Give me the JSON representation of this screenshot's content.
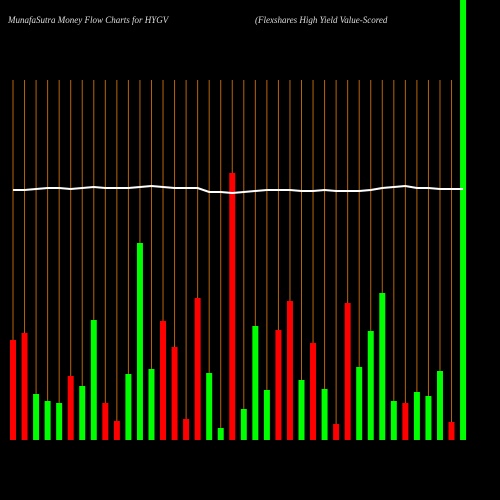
{
  "chart_data": {
    "type": "bar",
    "title": "MunafaSutra  Money Flow  Charts for HYGV",
    "subtitle": "(Flexshares High Yield Value-Scored",
    "values": [
      100,
      107,
      46,
      39,
      37,
      64,
      54,
      120,
      37,
      19,
      66,
      197,
      71,
      119,
      93,
      21,
      142,
      67,
      12,
      267,
      31,
      114,
      50,
      110,
      139,
      60,
      97,
      51,
      16,
      137,
      73,
      109,
      147,
      39,
      37,
      48,
      44,
      69,
      18,
      440
    ],
    "colors": [
      "#ff0000",
      "#ff0000",
      "#00ff00",
      "#00ff00",
      "#00ff00",
      "#ff0000",
      "#00ff00",
      "#00ff00",
      "#ff0000",
      "#ff0000",
      "#00ff00",
      "#00ff00",
      "#00ff00",
      "#ff0000",
      "#ff0000",
      "#ff0000",
      "#ff0000",
      "#00ff00",
      "#00ff00",
      "#ff0000",
      "#00ff00",
      "#00ff00",
      "#00ff00",
      "#ff0000",
      "#ff0000",
      "#00ff00",
      "#ff0000",
      "#00ff00",
      "#ff0000",
      "#ff0000",
      "#00ff00",
      "#00ff00",
      "#00ff00",
      "#00ff00",
      "#ff0000",
      "#00ff00",
      "#00ff00",
      "#00ff00",
      "#ff0000",
      "#00ff00"
    ],
    "line_values": [
      250,
      250,
      251,
      252,
      252,
      251,
      252,
      253,
      252,
      252,
      252,
      253,
      254,
      253,
      252,
      252,
      252,
      248,
      248,
      247,
      248,
      249,
      250,
      250,
      250,
      249,
      249,
      250,
      249,
      249,
      249,
      250,
      252,
      253,
      254,
      252,
      252,
      251,
      251,
      251
    ],
    "line_color": "#ffffff",
    "ylim": [
      0,
      440
    ]
  }
}
